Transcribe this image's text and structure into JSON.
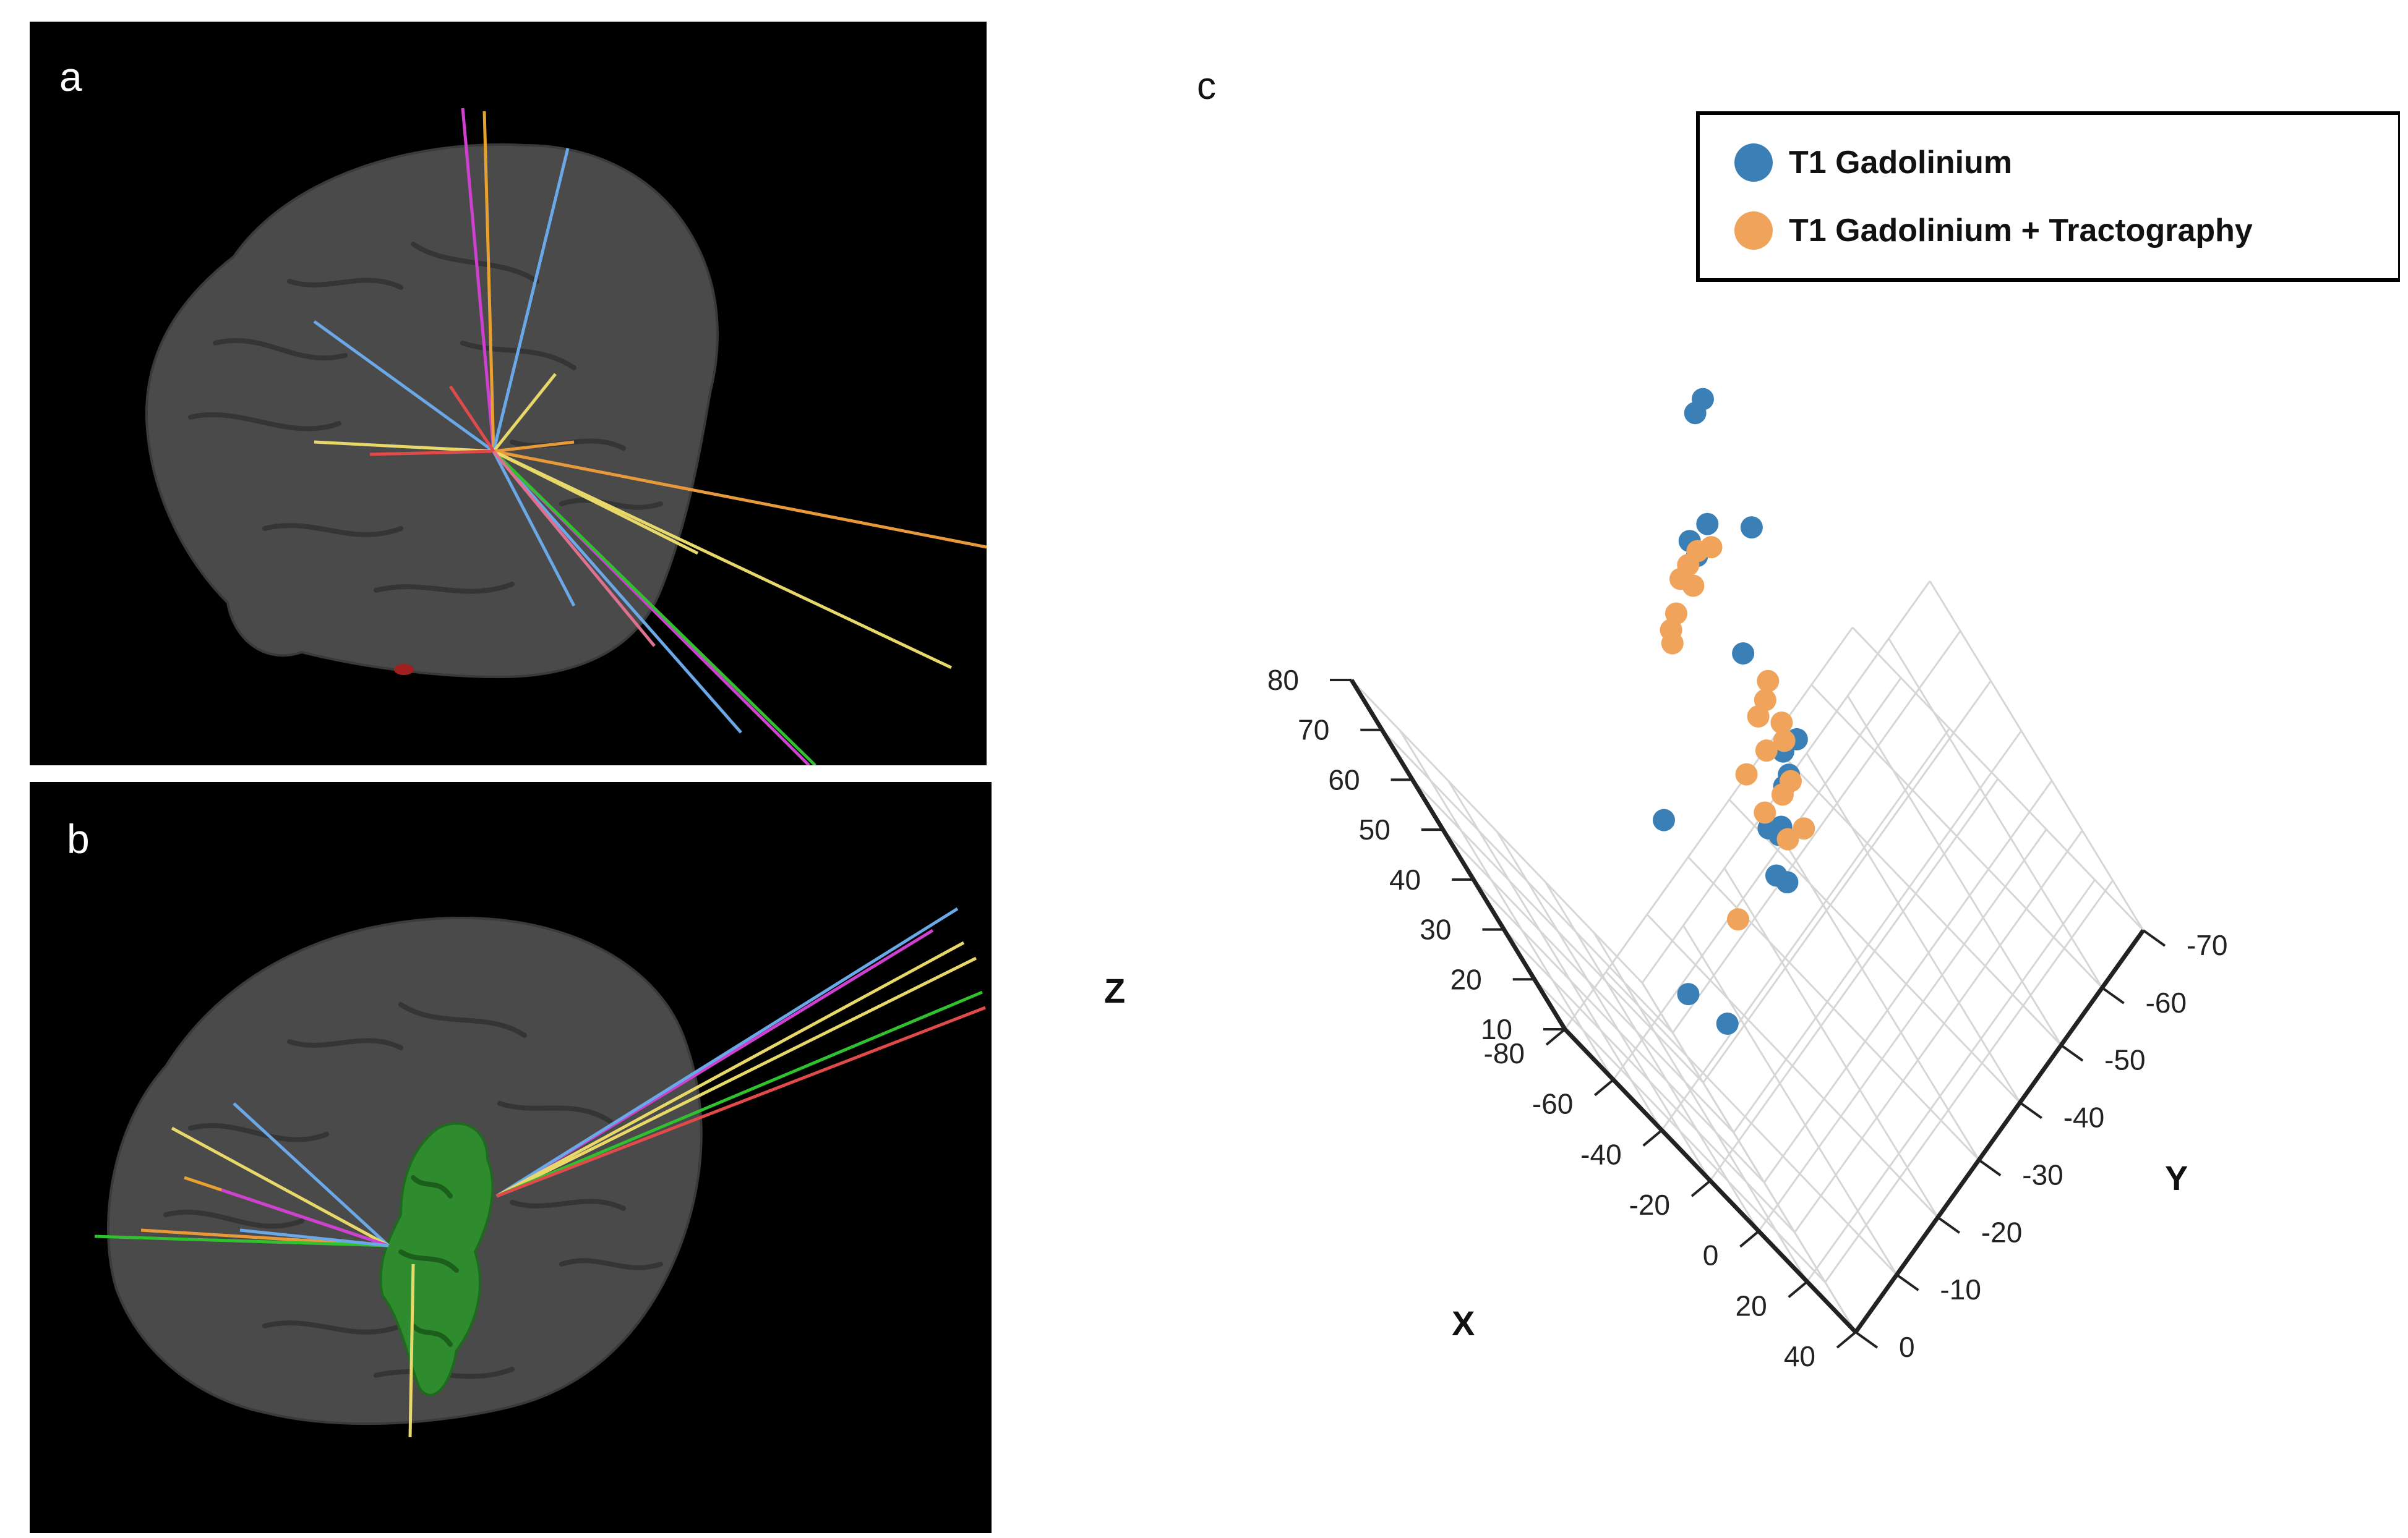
{
  "panels": {
    "a": {
      "label": "a"
    },
    "b": {
      "label": "b"
    },
    "c": {
      "label": "c"
    }
  },
  "colors": {
    "panel_bg": "#000000",
    "brain": "#4a4a4a",
    "blue_series": "#3a7fb5",
    "orange_series": "#f0a35a",
    "tumor": "#2e8b2e",
    "lead_blue": "#6aa8e8",
    "lead_yellow": "#e8d86a",
    "lead_magenta": "#d040d0",
    "lead_orange": "#e89a3a",
    "lead_green": "#30c030",
    "lead_red": "#e04a4a"
  },
  "chart_data": {
    "type": "scatter3d",
    "title": "",
    "axes": {
      "x": {
        "label": "X",
        "range": [
          -80,
          40
        ],
        "ticks": [
          -80,
          -60,
          -40,
          -20,
          0,
          20,
          40
        ]
      },
      "y": {
        "label": "Y",
        "range": [
          0,
          -70
        ],
        "ticks": [
          0,
          -10,
          -20,
          -30,
          -40,
          -50,
          -60,
          -70
        ]
      },
      "z": {
        "label": "Z",
        "range": [
          10,
          80
        ],
        "ticks": [
          10,
          20,
          30,
          40,
          50,
          60,
          70,
          80
        ]
      }
    },
    "legend": {
      "position": "top-right",
      "entries": [
        "T1 Gadolinium",
        "T1 Gadolinium + Tractography"
      ]
    },
    "series": [
      {
        "name": "T1 Gadolinium",
        "color": "#3a7fb5",
        "points": [
          [
            -58,
            -64,
            71
          ],
          [
            -57,
            -66,
            72
          ],
          [
            -52,
            -56,
            61
          ],
          [
            -58,
            -53,
            58
          ],
          [
            -60,
            -53,
            54
          ],
          [
            -30,
            -59,
            68
          ],
          [
            -6,
            -45,
            71
          ],
          [
            4,
            -44,
            60
          ],
          [
            5,
            -40,
            58
          ],
          [
            6,
            -41,
            62
          ],
          [
            9,
            -38,
            60
          ],
          [
            12,
            -34,
            58
          ],
          [
            13,
            -33,
            58
          ],
          [
            14,
            -32,
            61
          ],
          [
            15,
            -30,
            53
          ],
          [
            16,
            -29,
            56
          ],
          [
            -56,
            -27,
            33
          ],
          [
            -2,
            -10,
            45
          ],
          [
            -30,
            -16,
            18
          ]
        ]
      },
      {
        "name": "T1 Gadolinium + Tractography",
        "color": "#f0a35a",
        "points": [
          [
            -56,
            -53,
            57
          ],
          [
            -55,
            -55,
            56
          ],
          [
            -59,
            -51,
            55
          ],
          [
            -60,
            -49,
            54
          ],
          [
            -59,
            -50,
            52
          ],
          [
            -63,
            -44,
            48
          ],
          [
            -62,
            -43,
            47
          ],
          [
            -63,
            -46,
            49
          ],
          [
            3,
            -45,
            70
          ],
          [
            4,
            -43,
            69
          ],
          [
            2,
            -41,
            67
          ],
          [
            5,
            -39,
            64
          ],
          [
            6,
            -42,
            63
          ],
          [
            7,
            -43,
            66
          ],
          [
            9,
            -34,
            67
          ],
          [
            12,
            -33,
            62
          ],
          [
            10,
            -37,
            60
          ],
          [
            11,
            -34,
            55
          ],
          [
            -6,
            -41,
            50
          ],
          [
            2,
            -38,
            48
          ],
          [
            -6,
            -23,
            43
          ]
        ]
      }
    ]
  }
}
